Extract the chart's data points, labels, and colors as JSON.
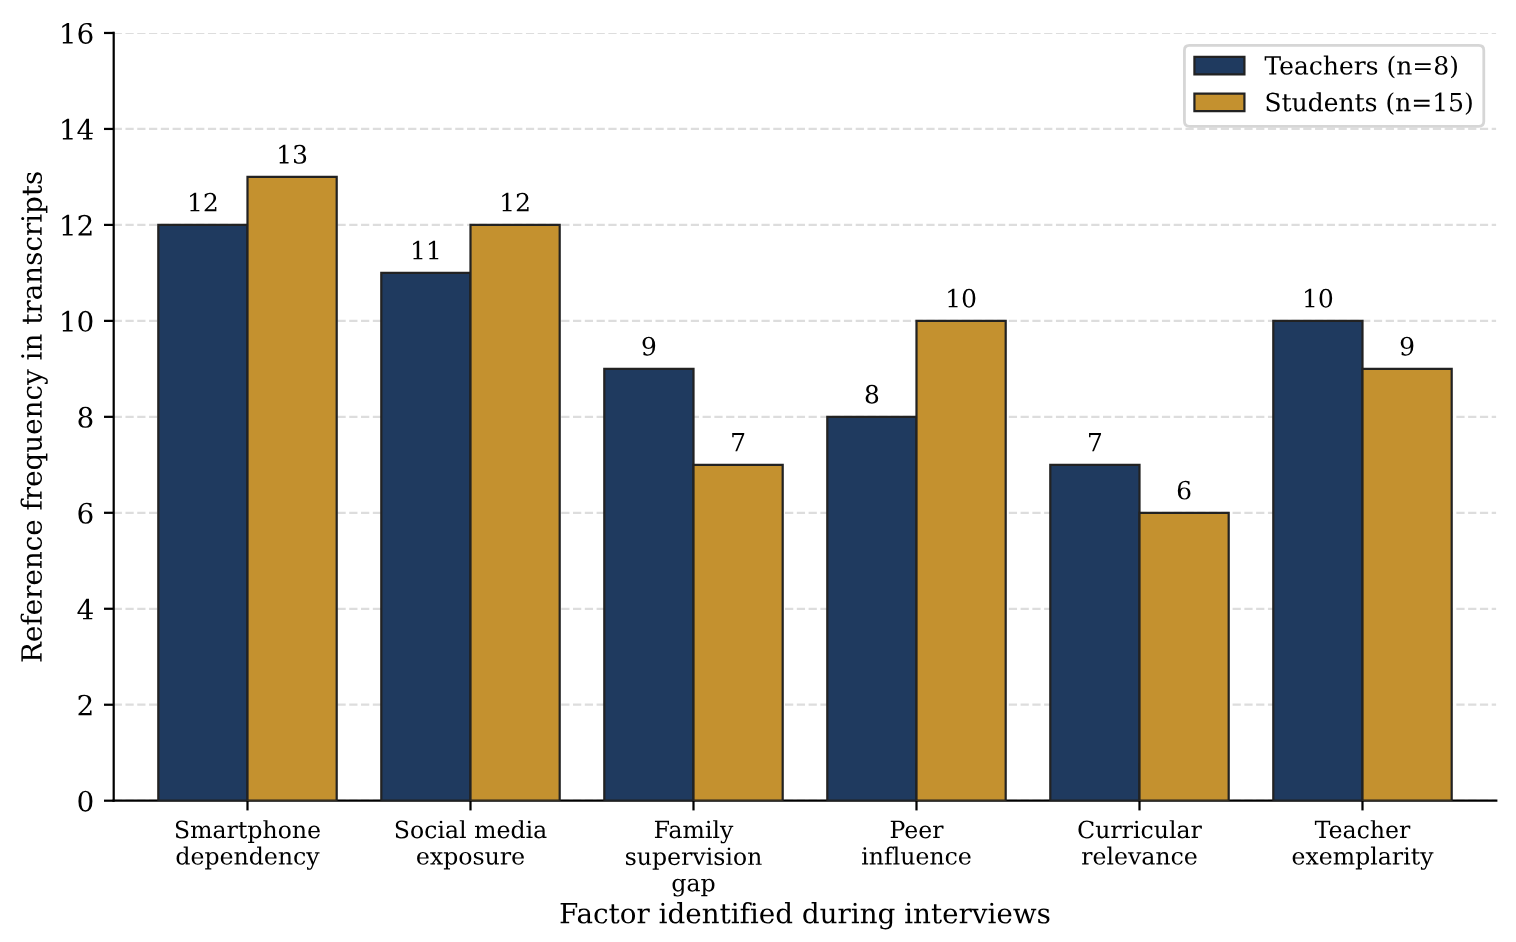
{
  "chart_data": {
    "type": "bar",
    "xlabel": "Factor identified during interviews",
    "ylabel": "Reference frequency in transcripts",
    "categories": [
      "Smartphone\ndependency",
      "Social media\nexposure",
      "Family\nsupervision\ngap",
      "Peer\ninfluence",
      "Curricular\nrelevance",
      "Teacher\nexemplarity"
    ],
    "series": [
      {
        "name": "Teachers (n=8)",
        "color": "#1f3a5f",
        "values": [
          12,
          11,
          9,
          8,
          7,
          10
        ]
      },
      {
        "name": "Students (n=15)",
        "color": "#c4912f",
        "values": [
          13,
          12,
          7,
          10,
          6,
          9
        ]
      }
    ],
    "ylim": [
      0,
      16
    ],
    "yticks": [
      0,
      2,
      4,
      6,
      8,
      10,
      12,
      14,
      16
    ],
    "grid": "y",
    "legend": "top right",
    "data_labels": true
  }
}
